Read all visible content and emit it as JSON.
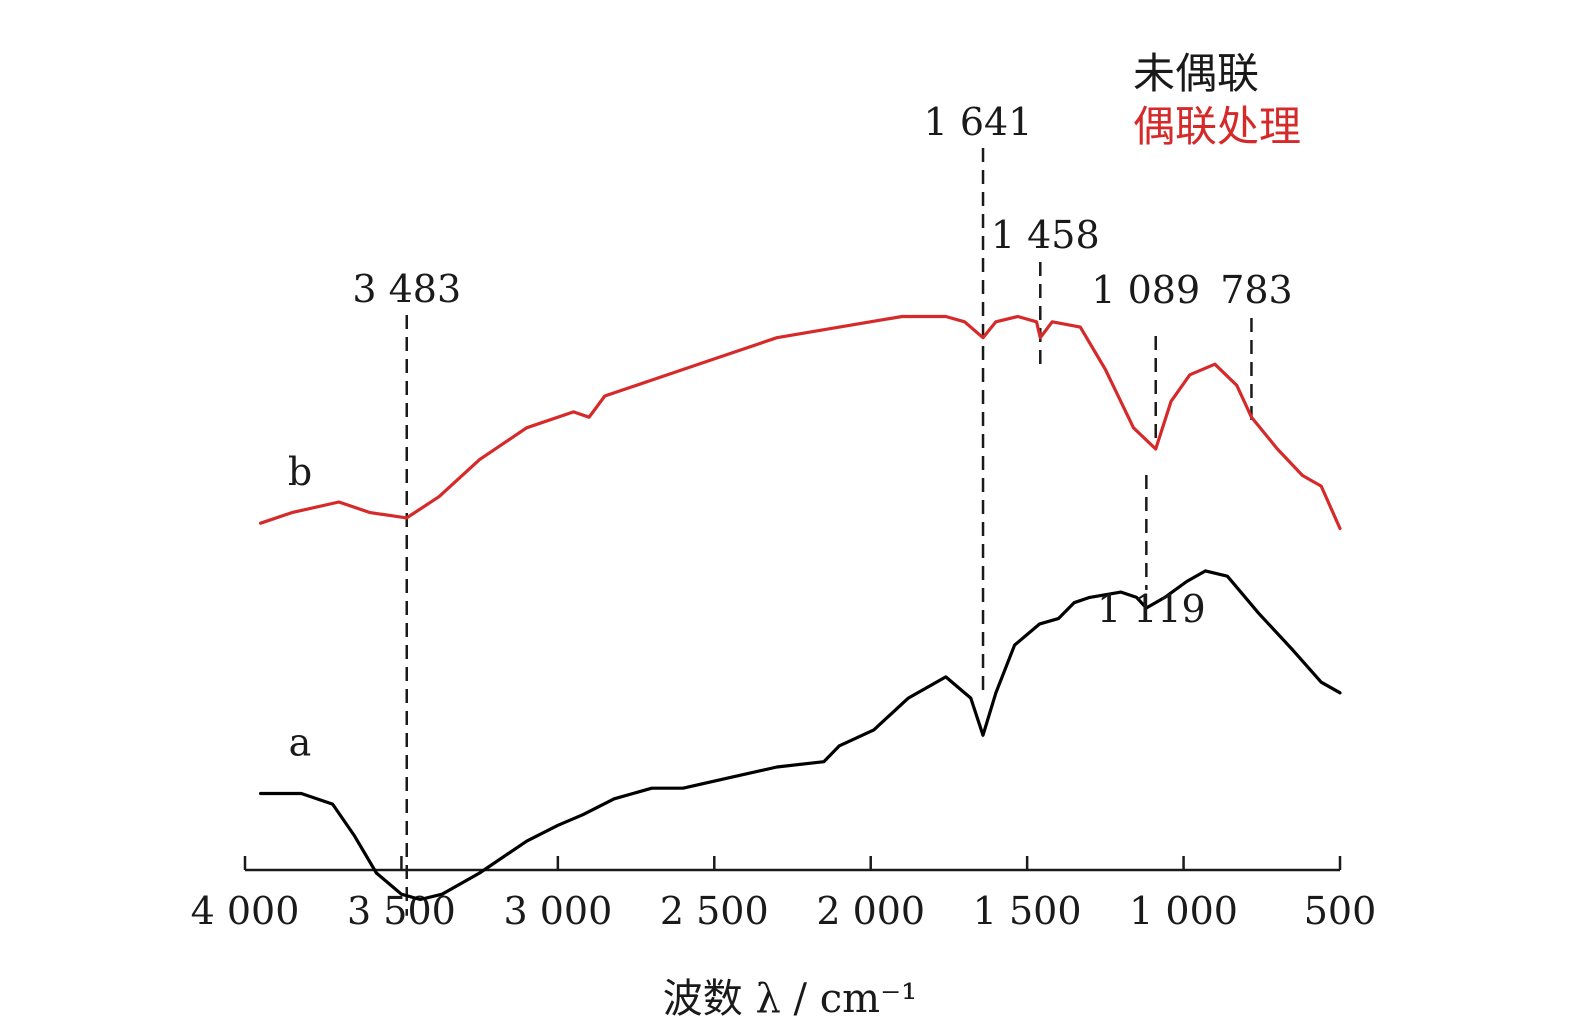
{
  "chart_data": {
    "type": "line",
    "xlabel": "波数 λ / cm⁻¹",
    "x_ticks": [
      "4 000",
      "3 500",
      "3 000",
      "2 500",
      "2 000",
      "1 500",
      "1 000",
      "500"
    ],
    "xlim": [
      4000,
      500
    ],
    "x_reversed": true,
    "grid": false,
    "legend": {
      "position": "top-right",
      "entries": [
        "未偶联",
        "偶联处理"
      ]
    },
    "series": [
      {
        "name": "未偶联",
        "label": "a",
        "color": "#000000",
        "points": [
          [
            3950,
            0.05
          ],
          [
            3820,
            0.05
          ],
          [
            3720,
            0.03
          ],
          [
            3650,
            -0.03
          ],
          [
            3580,
            -0.1
          ],
          [
            3500,
            -0.14
          ],
          [
            3440,
            -0.15
          ],
          [
            3370,
            -0.14
          ],
          [
            3250,
            -0.1
          ],
          [
            3100,
            -0.04
          ],
          [
            3000,
            -0.01
          ],
          [
            2920,
            0.01
          ],
          [
            2820,
            0.04
          ],
          [
            2700,
            0.06
          ],
          [
            2600,
            0.06
          ],
          [
            2450,
            0.08
          ],
          [
            2300,
            0.1
          ],
          [
            2150,
            0.11
          ],
          [
            2100,
            0.14
          ],
          [
            1990,
            0.17
          ],
          [
            1880,
            0.23
          ],
          [
            1760,
            0.27
          ],
          [
            1680,
            0.23
          ],
          [
            1641,
            0.16
          ],
          [
            1600,
            0.24
          ],
          [
            1540,
            0.33
          ],
          [
            1460,
            0.37
          ],
          [
            1400,
            0.38
          ],
          [
            1350,
            0.41
          ],
          [
            1300,
            0.42
          ],
          [
            1200,
            0.43
          ],
          [
            1150,
            0.42
          ],
          [
            1119,
            0.4
          ],
          [
            1060,
            0.42
          ],
          [
            990,
            0.45
          ],
          [
            930,
            0.47
          ],
          [
            860,
            0.46
          ],
          [
            760,
            0.39
          ],
          [
            650,
            0.32
          ],
          [
            560,
            0.26
          ],
          [
            500,
            0.24
          ]
        ]
      },
      {
        "name": "偶联处理",
        "label": "b",
        "color": "#d62a2a",
        "points": [
          [
            3950,
            0.56
          ],
          [
            3850,
            0.58
          ],
          [
            3700,
            0.6
          ],
          [
            3600,
            0.58
          ],
          [
            3483,
            0.57
          ],
          [
            3380,
            0.61
          ],
          [
            3250,
            0.68
          ],
          [
            3100,
            0.74
          ],
          [
            2950,
            0.77
          ],
          [
            2900,
            0.76
          ],
          [
            2850,
            0.8
          ],
          [
            2700,
            0.83
          ],
          [
            2500,
            0.87
          ],
          [
            2300,
            0.91
          ],
          [
            2100,
            0.93
          ],
          [
            1900,
            0.95
          ],
          [
            1760,
            0.95
          ],
          [
            1700,
            0.94
          ],
          [
            1641,
            0.91
          ],
          [
            1600,
            0.94
          ],
          [
            1530,
            0.95
          ],
          [
            1470,
            0.94
          ],
          [
            1458,
            0.91
          ],
          [
            1420,
            0.94
          ],
          [
            1330,
            0.93
          ],
          [
            1250,
            0.85
          ],
          [
            1160,
            0.74
          ],
          [
            1089,
            0.7
          ],
          [
            1040,
            0.79
          ],
          [
            980,
            0.84
          ],
          [
            900,
            0.86
          ],
          [
            830,
            0.82
          ],
          [
            783,
            0.76
          ],
          [
            700,
            0.7
          ],
          [
            620,
            0.65
          ],
          [
            560,
            0.63
          ],
          [
            500,
            0.55
          ]
        ]
      }
    ],
    "annotations": [
      {
        "text": "3 483",
        "x": 3483
      },
      {
        "text": "1 641",
        "x": 1641
      },
      {
        "text": "1 458",
        "x": 1458
      },
      {
        "text": "1 089",
        "x": 1089
      },
      {
        "text": "783",
        "x": 783
      },
      {
        "text": "1 119",
        "x": 1119
      }
    ]
  }
}
